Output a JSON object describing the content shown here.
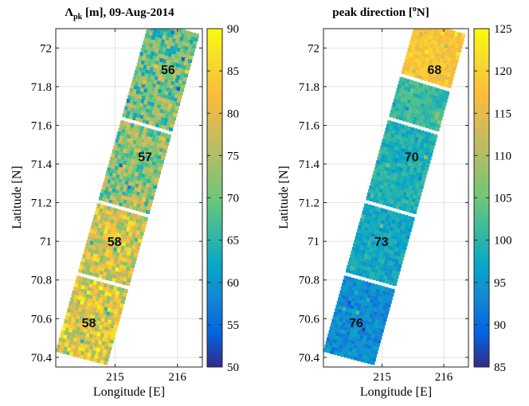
{
  "chart_data": [
    {
      "type": "heatmap",
      "title_symbol": "Λ",
      "title_subscript": "pk",
      "title_rest": " [m],  09-Aug-2014",
      "xlabel": "Longitude [E]",
      "ylabel": "Latitude [N]",
      "xlim": [
        214.05,
        216.4
      ],
      "ylim": [
        70.35,
        72.1
      ],
      "xticks": [
        215,
        216
      ],
      "xtick_labels": [
        "215",
        "216"
      ],
      "yticks": [
        70.4,
        70.6,
        70.8,
        71,
        71.2,
        71.4,
        71.6,
        71.8,
        72
      ],
      "ytick_labels": [
        "70.4",
        "70.6",
        "70.8",
        "71",
        "71.2",
        "71.4",
        "71.6",
        "71.8",
        "72"
      ],
      "grid": true,
      "colorbar": {
        "min": 50,
        "max": 90,
        "ticks": [
          50,
          55,
          60,
          65,
          70,
          75,
          80,
          85,
          90
        ],
        "tick_labels": [
          "50",
          "55",
          "60",
          "65",
          "70",
          "75",
          "80",
          "85",
          "90"
        ]
      },
      "swath_corners": {
        "bottom_left": [
          214.05,
          70.43
        ],
        "bottom_right": [
          214.87,
          70.36
        ],
        "top_right": [
          216.35,
          72.07
        ],
        "top_left": [
          215.56,
          72.15
        ]
      },
      "segments": [
        {
          "label": "56",
          "lon": 215.85,
          "lat": 71.89,
          "lat_range": [
            71.62,
            72.15
          ],
          "mean": 70
        },
        {
          "label": "57",
          "lon": 215.48,
          "lat": 71.44,
          "lat_range": [
            71.17,
            71.62
          ],
          "mean": 72
        },
        {
          "label": "58",
          "lon": 214.99,
          "lat": 71.0,
          "lat_range": [
            70.78,
            71.17
          ],
          "mean": 79
        },
        {
          "label": "58",
          "lon": 214.58,
          "lat": 70.58,
          "lat_range": [
            70.36,
            70.78
          ],
          "mean": 80
        }
      ]
    },
    {
      "type": "heatmap",
      "title_main": "peak direction [",
      "title_superscript": "o",
      "title_end": "N]",
      "xlabel": "Longitude [E]",
      "ylabel": "Latitude [N]",
      "xlim": [
        214.05,
        216.4
      ],
      "ylim": [
        70.35,
        72.1
      ],
      "xticks": [
        215,
        216
      ],
      "xtick_labels": [
        "215",
        "216"
      ],
      "yticks": [
        70.4,
        70.6,
        70.8,
        71,
        71.2,
        71.4,
        71.6,
        71.8,
        72
      ],
      "ytick_labels": [
        "70.4",
        "70.6",
        "70.8",
        "71",
        "71.2",
        "71.4",
        "71.6",
        "71.8",
        "72"
      ],
      "grid": true,
      "colorbar": {
        "min": 85,
        "max": 125,
        "ticks": [
          85,
          90,
          95,
          100,
          105,
          110,
          115,
          120,
          125
        ],
        "tick_labels": [
          "85",
          "90",
          "95",
          "100",
          "105",
          "110",
          "115",
          "120",
          "125"
        ]
      },
      "swath_corners": {
        "bottom_left": [
          214.05,
          70.43
        ],
        "bottom_right": [
          214.87,
          70.36
        ],
        "top_right": [
          216.35,
          72.07
        ],
        "top_left": [
          215.56,
          72.15
        ]
      },
      "segments": [
        {
          "label": "68",
          "lon": 215.85,
          "lat": 71.89,
          "lat_range": [
            71.85,
            72.15
          ],
          "mean": 118
        },
        {
          "label": "68",
          "lon": 215.85,
          "lat": 71.89,
          "lat_range": [
            71.62,
            71.85
          ],
          "mean": 101
        },
        {
          "label": "70",
          "lon": 215.48,
          "lat": 71.44,
          "lat_range": [
            71.17,
            71.62
          ],
          "mean": 99
        },
        {
          "label": "73",
          "lon": 214.99,
          "lat": 71.0,
          "lat_range": [
            70.78,
            71.17
          ],
          "mean": 97
        },
        {
          "label": "76",
          "lon": 214.58,
          "lat": 70.58,
          "lat_range": [
            70.36,
            70.78
          ],
          "mean": 94
        }
      ]
    }
  ]
}
